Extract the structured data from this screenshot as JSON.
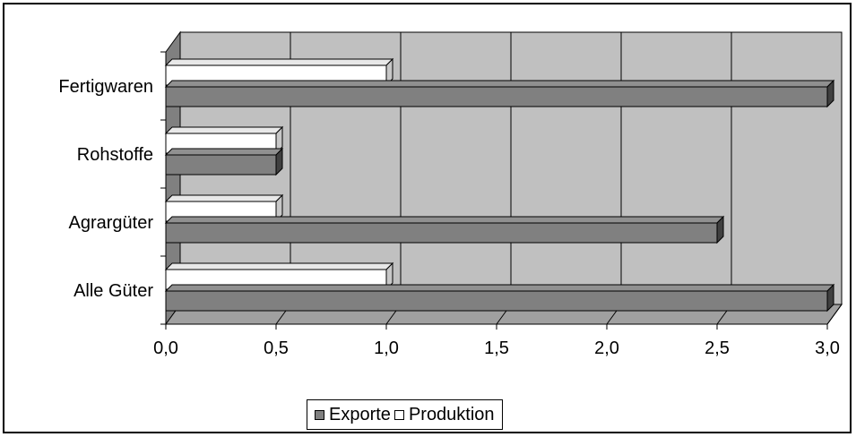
{
  "chart_data": {
    "type": "bar",
    "orientation": "horizontal",
    "style": "3d",
    "categories": [
      "Alle Güter",
      "Agrargüter",
      "Rohstoffe",
      "Fertigwaren"
    ],
    "series": [
      {
        "name": "Exporte",
        "values": [
          3.0,
          2.5,
          0.5,
          3.0
        ],
        "color": "#808080"
      },
      {
        "name": "Produktion",
        "values": [
          1.0,
          0.5,
          0.5,
          1.0
        ],
        "color": "#ffffff"
      }
    ],
    "xlim": [
      0,
      3
    ],
    "xticks": [
      "0,0",
      "0,5",
      "1,0",
      "1,5",
      "2,0",
      "2,5",
      "3,0"
    ],
    "grid": true,
    "wall_color": "#c0c0c0",
    "legend_position": "bottom"
  },
  "legend": {
    "items": [
      {
        "label": "Exporte",
        "color": "#808080"
      },
      {
        "label": "Produktion",
        "color": "#ffffff"
      }
    ]
  }
}
